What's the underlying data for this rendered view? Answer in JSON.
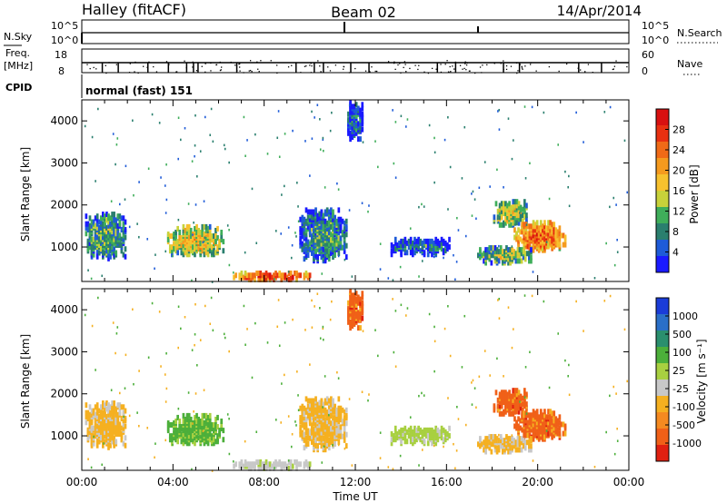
{
  "header": {
    "station": "Halley (fitACF)",
    "beam": "Beam 02",
    "date": "14/Apr/2014"
  },
  "top_panels": {
    "nsky_label": "N.Sky",
    "nsearch_label": "N.Search",
    "nsky_ticks": [
      "10^5",
      "10^0"
    ],
    "nsearch_ticks": [
      "10^5",
      "10^0"
    ],
    "freq_label": "Freq.",
    "freq_unit": "[MHz]",
    "freq_ticks": [
      "18",
      "8"
    ],
    "nave_label": "Nave",
    "nave_ticks": [
      "60",
      "0"
    ],
    "cpid_label": "CPID",
    "cpid_value": "normal (fast) 151"
  },
  "axes": {
    "ylabel": "Slant Range [km]",
    "xlabel": "Time UT",
    "x_ticks": [
      "00:00",
      "04:00",
      "08:00",
      "12:00",
      "16:00",
      "20:00",
      "00:00"
    ],
    "y_ticks": [
      "1000",
      "2000",
      "3000",
      "4000"
    ],
    "y_values": [
      1000,
      2000,
      3000,
      4000
    ],
    "x_range_hours": [
      0,
      24
    ],
    "y_range_km": [
      180,
      4500
    ]
  },
  "power_scale": {
    "label": "Power [dB]",
    "ticks": [
      "4",
      "8",
      "12",
      "16",
      "20",
      "24",
      "28"
    ],
    "colors": [
      "#1a1aff",
      "#1e5bd8",
      "#2a7f6e",
      "#3fae5a",
      "#c8d23a",
      "#f7c12e",
      "#f59a1e",
      "#f06a17",
      "#e83010",
      "#d81010"
    ]
  },
  "velocity_scale": {
    "label": "Velocity [m s⁻¹]",
    "ticks": [
      "1000",
      "500",
      "100",
      "25",
      "-25",
      "-100",
      "-500",
      "-1000"
    ],
    "colors": [
      "#1a3cd8",
      "#2a6fc8",
      "#2a8f6e",
      "#4caf3a",
      "#a8d040",
      "#c8c8c8",
      "#f5b020",
      "#f58a20",
      "#f06018",
      "#e02010"
    ]
  },
  "chart_data": [
    {
      "type": "heatmap",
      "title": "Power",
      "quantity": "Power [dB]",
      "x_units": "hours UT",
      "y_units": "km",
      "features": [
        {
          "x": [
            0.1,
            1.9
          ],
          "y": [
            700,
            1800
          ],
          "value": 12
        },
        {
          "x": [
            3.7,
            6.2
          ],
          "y": [
            800,
            1500
          ],
          "value": 18
        },
        {
          "x": [
            9.5,
            11.6
          ],
          "y": [
            650,
            1900
          ],
          "value": 10
        },
        {
          "x": [
            13.5,
            16.2
          ],
          "y": [
            800,
            1200
          ],
          "value": 8
        },
        {
          "x": [
            18.0,
            19.5
          ],
          "y": [
            1500,
            2100
          ],
          "value": 16
        },
        {
          "x": [
            18.9,
            21.2
          ],
          "y": [
            900,
            1600
          ],
          "value": 24
        },
        {
          "x": [
            17.3,
            19.7
          ],
          "y": [
            600,
            1000
          ],
          "value": 14
        },
        {
          "x": [
            6.5,
            10.0
          ],
          "y": [
            200,
            400
          ],
          "value": 26
        },
        {
          "x": [
            11.6,
            12.3
          ],
          "y": [
            3500,
            4500
          ],
          "value": 8
        }
      ]
    },
    {
      "type": "heatmap",
      "title": "Velocity",
      "quantity": "Velocity [m s-1]",
      "x_units": "hours UT",
      "y_units": "km",
      "features": [
        {
          "x": [
            0.1,
            1.9
          ],
          "y": [
            700,
            1800
          ],
          "value": -100
        },
        {
          "x": [
            3.7,
            6.2
          ],
          "y": [
            800,
            1500
          ],
          "value": 100
        },
        {
          "x": [
            9.5,
            11.6
          ],
          "y": [
            650,
            1900
          ],
          "value": -100
        },
        {
          "x": [
            13.5,
            16.2
          ],
          "y": [
            800,
            1200
          ],
          "value": 25
        },
        {
          "x": [
            18.0,
            19.5
          ],
          "y": [
            1500,
            2100
          ],
          "value": -500
        },
        {
          "x": [
            18.9,
            21.2
          ],
          "y": [
            900,
            1600
          ],
          "value": -500
        },
        {
          "x": [
            17.3,
            19.7
          ],
          "y": [
            600,
            1000
          ],
          "value": -100
        },
        {
          "x": [
            6.5,
            10.0
          ],
          "y": [
            200,
            400
          ],
          "value": -25
        },
        {
          "x": [
            11.6,
            12.3
          ],
          "y": [
            3500,
            4500
          ],
          "value": -500
        }
      ]
    }
  ]
}
